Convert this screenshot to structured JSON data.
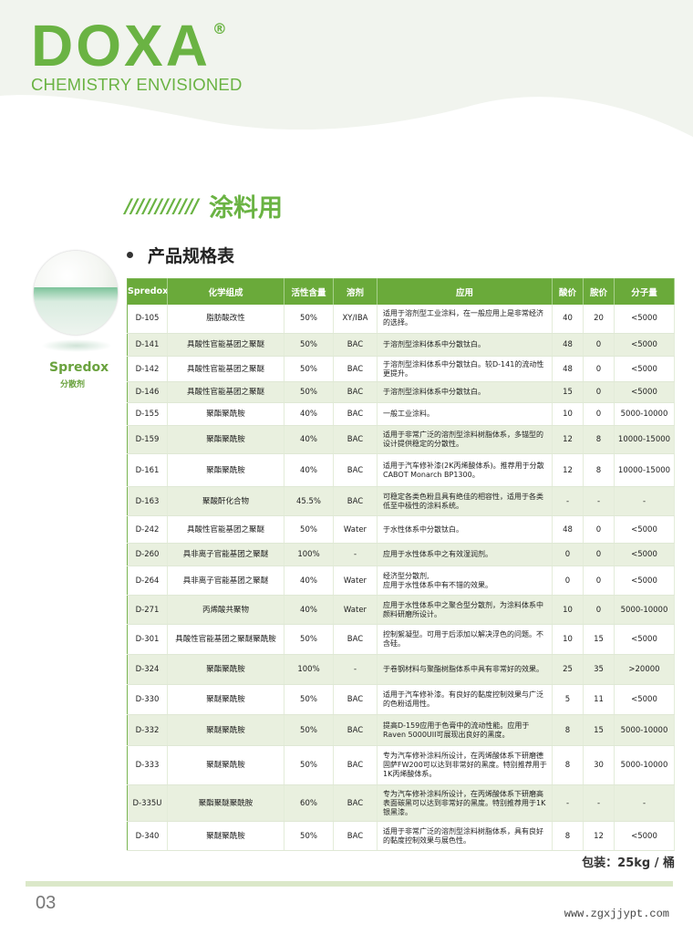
{
  "brand": {
    "logo": "DOXA",
    "registered": "®",
    "tagline": "CHEMISTRY ENVISIONED",
    "accent": "#6ab343"
  },
  "section": {
    "stripes": "////////////",
    "title": "涂料用"
  },
  "subtitle": "产品规格表",
  "sidebar": {
    "name": "Spredox",
    "sub": "分散剂"
  },
  "table": {
    "headers": [
      "Spredox",
      "化学组成",
      "活性含量",
      "溶剂",
      "应用",
      "酸价",
      "胺价",
      "分子量"
    ],
    "rows": [
      [
        "D-105",
        "脂肪酸改性",
        "50%",
        "XY/IBA",
        "适用于溶剂型工业涂料，在一般应用上是非常经济的选择。",
        "40",
        "20",
        "<5000"
      ],
      [
        "D-141",
        "具酸性官能基团之聚醚",
        "50%",
        "BAC",
        "于溶剂型涂料体系中分散钛白。",
        "48",
        "0",
        "<5000"
      ],
      [
        "D-142",
        "具酸性官能基团之聚醚",
        "50%",
        "BAC",
        "于溶剂型涂料体系中分散钛白。较D-141的流动性更提升。",
        "48",
        "0",
        "<5000"
      ],
      [
        "D-146",
        "具酸性官能基团之聚醚",
        "50%",
        "BAC",
        "于溶剂型涂料体系中分散钛白。",
        "15",
        "0",
        "<5000"
      ],
      [
        "D-155",
        "聚酯聚酰胺",
        "40%",
        "BAC",
        "一般工业涂料。",
        "10",
        "0",
        "5000-10000"
      ],
      [
        "D-159",
        "聚酯聚酰胺",
        "40%",
        "BAC",
        "适用于非常广泛的溶剂型涂料树脂体系，多锚型的设计提供稳定的分散性。",
        "12",
        "8",
        "10000-15000"
      ],
      [
        "D-161",
        "聚酯聚酰胺",
        "40%",
        "BAC",
        "适用于汽车修补漆(2K丙烯酸体系)。推荐用于分散CABOT Monarch BP1300。",
        "12",
        "8",
        "10000-15000"
      ],
      [
        "D-163",
        "聚酸酐化合物",
        "45.5%",
        "BAC",
        "可稳定各类色粉且具有绝佳的相容性，适用于各类低至中极性的涂料系统。",
        "-",
        "-",
        "-"
      ],
      [
        "D-242",
        "具酸性官能基团之聚醚",
        "50%",
        "Water",
        "于水性体系中分散钛白。",
        "48",
        "0",
        "<5000"
      ],
      [
        "D-260",
        "具非离子官能基团之聚醚",
        "100%",
        "-",
        "应用于水性体系中之有效湿润剂。",
        "0",
        "0",
        "<5000"
      ],
      [
        "D-264",
        "具非离子官能基团之聚醚",
        "40%",
        "Water",
        "经济型分散剂,\n应用于水性体系中有不错的效果。",
        "0",
        "0",
        "<5000"
      ],
      [
        "D-271",
        "丙烯酸共聚物",
        "40%",
        "Water",
        "应用于水性体系中之聚合型分散剂，为涂料体系中颜料研磨所设计。",
        "10",
        "0",
        "5000-10000"
      ],
      [
        "D-301",
        "具酸性官能基团之聚醚聚酰胺",
        "50%",
        "BAC",
        "控制絮凝型。可用于后添加以解决浮色的问题。不含硅。",
        "10",
        "15",
        "<5000"
      ],
      [
        "D-324",
        "聚酯聚酰胺",
        "100%",
        "-",
        "于卷钢材料与聚酯树脂体系中具有非常好的效果。",
        "25",
        "35",
        ">20000"
      ],
      [
        "D-330",
        "聚醚聚酰胺",
        "50%",
        "BAC",
        "适用于汽车修补漆。有良好的黏度控制效果与广泛的色粉适用性。",
        "5",
        "11",
        "<5000"
      ],
      [
        "D-332",
        "聚醚聚酰胺",
        "50%",
        "BAC",
        "提高D-159应用于色膏中的流动性能。应用于Raven 5000UII可展现出良好的黑度。",
        "8",
        "15",
        "5000-10000"
      ],
      [
        "D-333",
        "聚醚聚酰胺",
        "50%",
        "BAC",
        "专为汽车修补涂料所设计，在丙烯酸体系下研磨德固萨FW200可以达到非常好的黑度。特别推荐用于1K丙烯酸体系。",
        "8",
        "30",
        "5000-10000"
      ],
      [
        "D-335U",
        "聚酯聚醚聚酰胺",
        "60%",
        "BAC",
        "专为汽车修补涂料所设计，在丙烯酸体系下研磨高表面碳黑可以达到非常好的黑度。特别推荐用于1K银黑漆。",
        "-",
        "-",
        "-"
      ],
      [
        "D-340",
        "聚醚聚酰胺",
        "50%",
        "BAC",
        "适用于非常广泛的溶剂型涂料树脂体系，具有良好的黏度控制效果与展色性。",
        "8",
        "12",
        "<5000"
      ]
    ]
  },
  "packaging": "包装：25kg / 桶",
  "footer": {
    "page": "03",
    "url": "www.zgxjjypt.com"
  }
}
